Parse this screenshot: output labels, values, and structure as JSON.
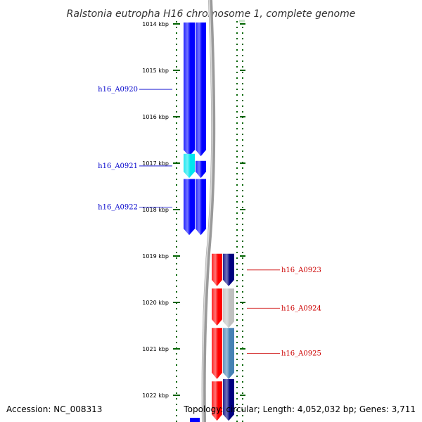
{
  "title": "Ralstonia eutropha H16 chromosome 1, complete genome",
  "footer": {
    "accession": "Accession: NC_008313",
    "summary": "Topology: circular; Length: 4,052,032 bp; Genes: 3,711"
  },
  "colors": {
    "background": "#ffffff",
    "tick_green": "#006400",
    "backbone_grey": "#808080",
    "forward_gene_blue": "#0000ff",
    "forward_cds_cyan": "#00e5ee",
    "reverse_gene_red": "#ff0000",
    "reverse_cds_navy": "#000080",
    "reverse_cds_grey": "#c0c0c0",
    "reverse_cds_steelblue": "#4682b4",
    "forward_label": "#0000cc",
    "reverse_label": "#cc0000"
  },
  "chart_data": {
    "type": "linear-genome-map",
    "axis_unit": "kbp",
    "position_range_kbp": [
      1013.97,
      1022.55
    ],
    "ticks": [
      {
        "kbp": 1014,
        "label": "1014 kbp"
      },
      {
        "kbp": 1015,
        "label": "1015 kbp"
      },
      {
        "kbp": 1016,
        "label": "1016 kbp"
      },
      {
        "kbp": 1017,
        "label": "1017 kbp"
      },
      {
        "kbp": 1018,
        "label": "1018 kbp"
      },
      {
        "kbp": 1019,
        "label": "1019 kbp"
      },
      {
        "kbp": 1020,
        "label": "1020 kbp"
      },
      {
        "kbp": 1021,
        "label": "1021 kbp"
      },
      {
        "kbp": 1022,
        "label": "1022 kbp"
      }
    ],
    "genes": [
      {
        "label": "",
        "strand": "+",
        "start_kbp": 1013.97,
        "end_kbp": 1016.85,
        "color": "#0000ff"
      },
      {
        "label": "",
        "strand": "+",
        "start_kbp": 1016.95,
        "end_kbp": 1017.32,
        "color": "#0000ff"
      },
      {
        "label": "",
        "strand": "+",
        "start_kbp": 1017.34,
        "end_kbp": 1018.55,
        "color": "#0000ff"
      },
      {
        "label": "",
        "strand": "-",
        "start_kbp": 1018.95,
        "end_kbp": 1019.65,
        "color": "#ff0000"
      },
      {
        "label": "",
        "strand": "-",
        "start_kbp": 1019.7,
        "end_kbp": 1020.5,
        "color": "#ff0000"
      },
      {
        "label": "",
        "strand": "-",
        "start_kbp": 1020.55,
        "end_kbp": 1021.65,
        "color": "#ff0000"
      },
      {
        "label": "",
        "strand": "-",
        "start_kbp": 1021.7,
        "end_kbp": 1022.55,
        "color": "#ff0000"
      }
    ],
    "cds": [
      {
        "label": "h16_A0920",
        "strand": "+",
        "start_kbp": 1013.97,
        "end_kbp": 1016.85,
        "color": "#0000ff"
      },
      {
        "label": "h16_A0921",
        "strand": "+",
        "start_kbp": 1016.8,
        "end_kbp": 1017.32,
        "color": "#00e5ee"
      },
      {
        "label": "h16_A0922",
        "strand": "+",
        "start_kbp": 1017.34,
        "end_kbp": 1018.55,
        "color": "#0000ff"
      },
      {
        "label": "h16_A0923",
        "strand": "-",
        "start_kbp": 1018.95,
        "end_kbp": 1019.65,
        "color": "#000080"
      },
      {
        "label": "h16_A0924",
        "strand": "-",
        "start_kbp": 1019.7,
        "end_kbp": 1020.55,
        "color": "#c0c0c0"
      },
      {
        "label": "h16_A0925",
        "strand": "-",
        "start_kbp": 1020.55,
        "end_kbp": 1021.65,
        "color": "#4682b4"
      },
      {
        "label": "",
        "strand": "-",
        "start_kbp": 1021.65,
        "end_kbp": 1022.55,
        "color": "#000080"
      }
    ]
  }
}
